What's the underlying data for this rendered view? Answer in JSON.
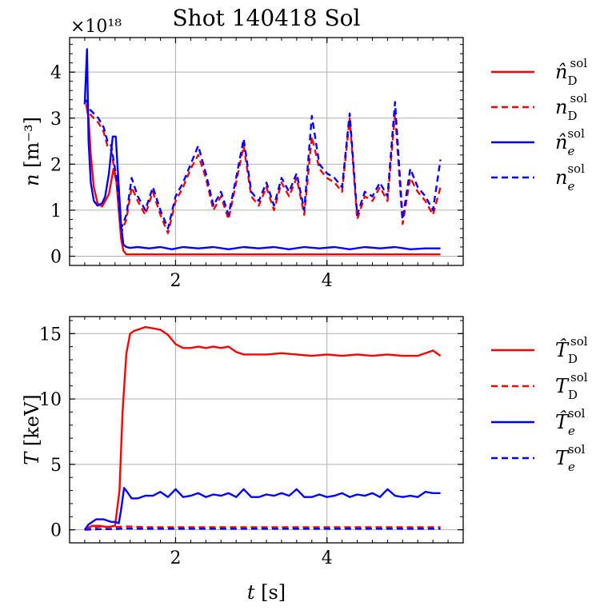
{
  "title": "Shot 140418 Sol",
  "colors": {
    "red": "#ff0000",
    "blue": "#0000ff",
    "grid": "#b0b0b0"
  },
  "chart_data": [
    {
      "type": "line",
      "name": "density",
      "ylabel_symbol": "n",
      "ylabel_unit": "[m⁻³]",
      "offset_text": "×10¹⁸",
      "xlim": [
        0.6,
        5.8
      ],
      "ylim": [
        -0.2,
        4.75
      ],
      "xticks": [
        2,
        4
      ],
      "xtick_labels": [
        "2",
        "4"
      ],
      "yticks": [
        0,
        1,
        2,
        3,
        4
      ],
      "ytick_labels": [
        "0",
        "1",
        "2",
        "3",
        "4"
      ],
      "grid": true,
      "legend_position": "outside-right",
      "series": [
        {
          "name": "n̂_D^sol",
          "base": "n̂",
          "sub": "D",
          "sup": "sol",
          "color": "#ff0000",
          "style": "solid",
          "x": [
            0.82,
            0.85,
            0.88,
            0.92,
            0.97,
            1.03,
            1.07,
            1.12,
            1.18,
            1.22,
            1.25,
            1.28,
            1.31,
            1.35,
            1.5,
            2.0,
            3.0,
            4.0,
            5.0,
            5.5
          ],
          "y": [
            3.3,
            3.0,
            2.2,
            1.5,
            1.15,
            1.08,
            1.2,
            1.35,
            1.9,
            1.6,
            1.0,
            0.4,
            0.12,
            0.04,
            0.04,
            0.04,
            0.04,
            0.04,
            0.04,
            0.04
          ]
        },
        {
          "name": "n_D^sol",
          "base": "n",
          "sub": "D",
          "sup": "sol",
          "color": "#ff0000",
          "style": "dashed",
          "x": [
            0.82,
            0.86,
            0.92,
            0.98,
            1.05,
            1.1,
            1.15,
            1.22,
            1.28,
            1.35,
            1.42,
            1.5,
            1.6,
            1.7,
            1.8,
            1.9,
            2.0,
            2.1,
            2.2,
            2.3,
            2.4,
            2.5,
            2.6,
            2.7,
            2.8,
            2.9,
            3.0,
            3.1,
            3.2,
            3.3,
            3.4,
            3.5,
            3.6,
            3.7,
            3.8,
            3.9,
            4.0,
            4.1,
            4.2,
            4.3,
            4.4,
            4.5,
            4.6,
            4.7,
            4.8,
            4.9,
            5.0,
            5.1,
            5.2,
            5.3,
            5.4,
            5.5
          ],
          "y": [
            3.3,
            3.1,
            3.0,
            2.9,
            2.7,
            2.4,
            2.3,
            1.6,
            0.5,
            0.8,
            1.5,
            1.2,
            0.9,
            1.4,
            0.9,
            0.5,
            1.2,
            1.5,
            1.9,
            2.2,
            1.7,
            1.0,
            1.3,
            0.8,
            1.6,
            2.4,
            1.3,
            1.1,
            1.5,
            1.0,
            1.6,
            1.3,
            1.7,
            0.9,
            2.6,
            1.9,
            1.7,
            1.6,
            1.4,
            3.0,
            0.8,
            1.3,
            1.2,
            1.5,
            1.2,
            3.1,
            0.7,
            1.7,
            1.4,
            1.2,
            0.9,
            1.5
          ]
        },
        {
          "name": "n̂_e^sol",
          "base": "n̂",
          "sub": "e",
          "sup": "sol",
          "color": "#0000ff",
          "style": "solid",
          "x": [
            0.8,
            0.83,
            0.85,
            0.88,
            0.92,
            0.97,
            1.03,
            1.07,
            1.12,
            1.17,
            1.21,
            1.25,
            1.28,
            1.31,
            1.35,
            1.4,
            1.5,
            1.65,
            1.8,
            1.95,
            2.1,
            2.3,
            2.5,
            2.7,
            2.9,
            3.1,
            3.3,
            3.5,
            3.7,
            3.9,
            4.1,
            4.3,
            4.5,
            4.7,
            4.9,
            5.1,
            5.3,
            5.5
          ],
          "y": [
            3.3,
            4.5,
            2.5,
            1.6,
            1.2,
            1.1,
            1.15,
            1.3,
            1.8,
            2.6,
            2.6,
            1.5,
            0.7,
            0.25,
            0.2,
            0.18,
            0.2,
            0.17,
            0.2,
            0.15,
            0.2,
            0.17,
            0.2,
            0.15,
            0.2,
            0.17,
            0.2,
            0.15,
            0.2,
            0.17,
            0.2,
            0.15,
            0.2,
            0.17,
            0.2,
            0.15,
            0.17,
            0.17
          ]
        },
        {
          "name": "n_e^sol",
          "base": "n",
          "sub": "e",
          "sup": "sol",
          "color": "#0000ff",
          "style": "dashed",
          "x": [
            0.82,
            0.86,
            0.92,
            0.98,
            1.05,
            1.1,
            1.15,
            1.22,
            1.28,
            1.35,
            1.42,
            1.5,
            1.6,
            1.7,
            1.8,
            1.9,
            2.0,
            2.1,
            2.2,
            2.3,
            2.4,
            2.5,
            2.6,
            2.7,
            2.8,
            2.9,
            3.0,
            3.1,
            3.2,
            3.3,
            3.4,
            3.5,
            3.6,
            3.7,
            3.8,
            3.9,
            4.0,
            4.1,
            4.2,
            4.3,
            4.4,
            4.5,
            4.6,
            4.7,
            4.8,
            4.9,
            5.0,
            5.1,
            5.2,
            5.3,
            5.4,
            5.5
          ],
          "y": [
            3.4,
            3.2,
            3.1,
            3.0,
            2.8,
            2.5,
            2.4,
            1.7,
            0.6,
            0.9,
            1.7,
            1.3,
            1.0,
            1.5,
            1.0,
            0.6,
            1.3,
            1.6,
            2.0,
            2.4,
            1.8,
            1.1,
            1.4,
            0.9,
            1.7,
            2.55,
            1.4,
            1.2,
            1.6,
            1.1,
            1.7,
            1.4,
            1.8,
            1.0,
            3.05,
            2.0,
            1.8,
            1.7,
            1.5,
            3.1,
            0.9,
            1.4,
            1.3,
            1.6,
            1.3,
            3.35,
            0.8,
            1.9,
            1.5,
            1.3,
            1.0,
            2.1
          ]
        }
      ]
    },
    {
      "type": "line",
      "name": "temperature",
      "ylabel_symbol": "T",
      "ylabel_unit": "[keV]",
      "xlabel_symbol": "t",
      "xlabel_unit": "[s]",
      "xlim": [
        0.6,
        5.8
      ],
      "ylim": [
        -1.0,
        16.3
      ],
      "xticks": [
        2,
        4
      ],
      "xtick_labels": [
        "2",
        "4"
      ],
      "yticks": [
        0,
        5,
        10,
        15
      ],
      "ytick_labels": [
        "0",
        "5",
        "10",
        "15"
      ],
      "grid": true,
      "legend_position": "outside-right",
      "series": [
        {
          "name": "T̂_D^sol",
          "base": "T̂",
          "sub": "D",
          "sup": "sol",
          "color": "#ff0000",
          "style": "solid",
          "x": [
            0.8,
            0.9,
            1.0,
            1.1,
            1.2,
            1.26,
            1.3,
            1.35,
            1.4,
            1.45,
            1.55,
            1.6,
            1.7,
            1.8,
            1.9,
            2.0,
            2.1,
            2.2,
            2.3,
            2.4,
            2.5,
            2.6,
            2.7,
            2.8,
            2.9,
            3.0,
            3.2,
            3.4,
            3.6,
            3.8,
            4.0,
            4.2,
            4.4,
            4.6,
            4.8,
            5.0,
            5.2,
            5.4,
            5.5
          ],
          "y": [
            0.0,
            0.3,
            0.3,
            0.2,
            0.3,
            3.0,
            9.0,
            13.5,
            15.0,
            15.2,
            15.4,
            15.5,
            15.4,
            15.3,
            14.9,
            14.2,
            13.9,
            13.9,
            14.0,
            13.9,
            14.0,
            13.9,
            14.0,
            13.6,
            13.4,
            13.4,
            13.4,
            13.5,
            13.4,
            13.3,
            13.4,
            13.3,
            13.4,
            13.3,
            13.4,
            13.3,
            13.3,
            13.7,
            13.3
          ]
        },
        {
          "name": "T_D^sol",
          "base": "T",
          "sub": "D",
          "sup": "sol",
          "color": "#ff0000",
          "style": "dashed",
          "x": [
            0.8,
            1.0,
            1.2,
            1.3,
            1.4,
            1.6,
            2.0,
            3.0,
            4.0,
            5.0,
            5.5
          ],
          "y": [
            0.0,
            0.25,
            0.2,
            0.25,
            0.25,
            0.2,
            0.2,
            0.2,
            0.2,
            0.2,
            0.2
          ]
        },
        {
          "name": "T̂_e^sol",
          "base": "T̂",
          "sub": "e",
          "sup": "sol",
          "color": "#0000ff",
          "style": "solid",
          "x": [
            0.8,
            0.85,
            0.9,
            0.95,
            1.0,
            1.05,
            1.1,
            1.15,
            1.2,
            1.25,
            1.28,
            1.32,
            1.36,
            1.42,
            1.5,
            1.6,
            1.7,
            1.8,
            1.9,
            2.0,
            2.1,
            2.2,
            2.3,
            2.4,
            2.5,
            2.6,
            2.7,
            2.8,
            2.9,
            3.0,
            3.1,
            3.2,
            3.3,
            3.4,
            3.5,
            3.6,
            3.7,
            3.8,
            3.9,
            4.0,
            4.1,
            4.2,
            4.3,
            4.4,
            4.5,
            4.6,
            4.7,
            4.8,
            4.9,
            5.0,
            5.1,
            5.2,
            5.3,
            5.4,
            5.5
          ],
          "y": [
            0.0,
            0.4,
            0.6,
            0.8,
            0.8,
            0.8,
            0.7,
            0.6,
            0.6,
            0.5,
            1.5,
            3.2,
            2.9,
            2.4,
            2.4,
            2.6,
            2.6,
            2.9,
            2.5,
            3.1,
            2.5,
            2.6,
            2.8,
            2.5,
            2.7,
            2.6,
            2.8,
            2.5,
            3.1,
            2.5,
            2.5,
            2.7,
            2.6,
            2.8,
            2.6,
            3.1,
            2.5,
            2.5,
            2.7,
            2.5,
            2.6,
            2.8,
            2.5,
            2.7,
            2.6,
            2.8,
            2.5,
            3.1,
            2.6,
            2.5,
            2.6,
            2.5,
            2.9,
            2.8,
            2.8
          ]
        },
        {
          "name": "T_e^sol",
          "base": "T",
          "sub": "e",
          "sup": "sol",
          "color": "#0000ff",
          "style": "dashed",
          "x": [
            0.8,
            1.0,
            1.2,
            1.3,
            1.5,
            2.0,
            3.0,
            4.0,
            5.0,
            5.5
          ],
          "y": [
            0.0,
            0.05,
            0.05,
            0.1,
            0.08,
            0.08,
            0.08,
            0.08,
            0.08,
            0.08
          ]
        }
      ]
    }
  ]
}
